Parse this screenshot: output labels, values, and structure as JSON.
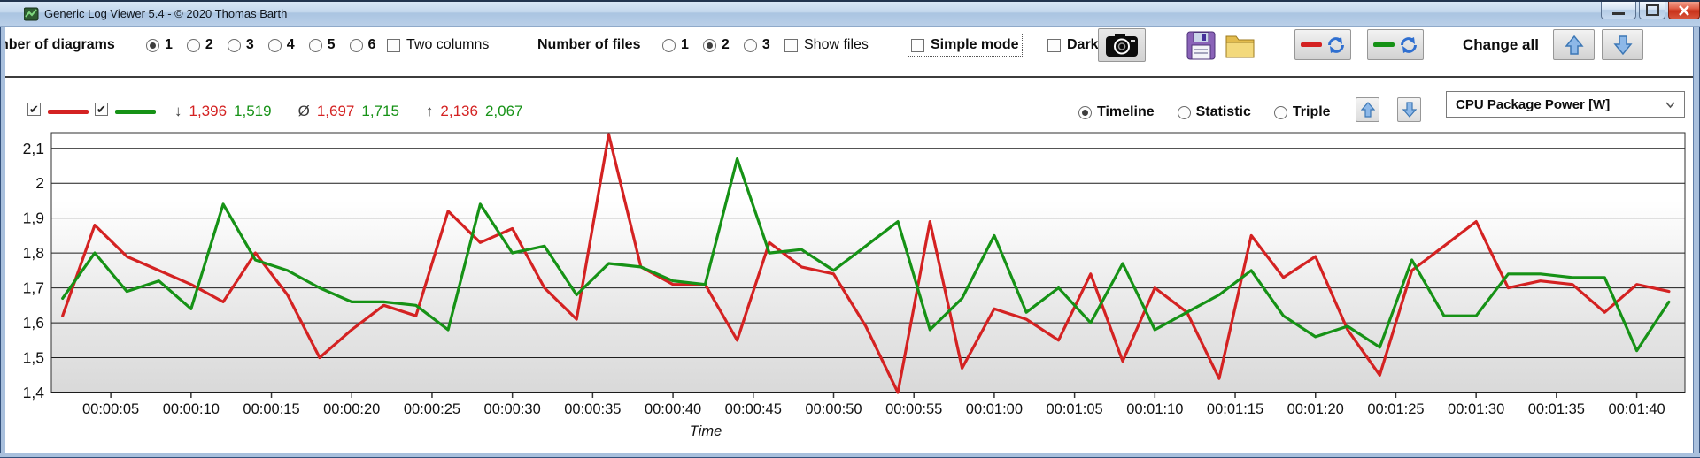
{
  "titlebar": {
    "title": "Generic Log Viewer 5.4 - © 2020 Thomas Barth"
  },
  "icons": {
    "check": "✔",
    "camera": "camera-icon",
    "save": "floppy-disk-icon",
    "open": "folder-icon",
    "refresh": "refresh-arrows-icon",
    "arrow_up": "blue-arrow-up-icon",
    "arrow_down": "blue-arrow-down-icon"
  },
  "toolbar": {
    "diagrams": {
      "label": "nber of diagrams",
      "options": [
        "1",
        "2",
        "3",
        "4",
        "5",
        "6"
      ],
      "selected": "1"
    },
    "two_columns": {
      "label": "Two columns",
      "checked": false
    },
    "files": {
      "label": "Number of files",
      "options": [
        "1",
        "2",
        "3"
      ],
      "selected": "2"
    },
    "show_files": {
      "label": "Show files",
      "checked": false
    },
    "simple_mode": {
      "label": "Simple mode",
      "checked": false,
      "focused": true
    },
    "dark": {
      "label": "Dark",
      "checked": false
    },
    "change_all_label": "Change all"
  },
  "legend": {
    "series_toggles": [
      {
        "name": "file-1",
        "checked": true,
        "color": "#d42222"
      },
      {
        "name": "file-2",
        "checked": true,
        "color": "#169216"
      }
    ],
    "stats": [
      {
        "symbol": "↓",
        "name": "minimum",
        "red": "1,396",
        "green": "1,519"
      },
      {
        "symbol": "Ø",
        "name": "average",
        "red": "1,697",
        "green": "1,715"
      },
      {
        "symbol": "↑",
        "name": "maximum",
        "red": "2,136",
        "green": "2,067"
      }
    ],
    "view_modes": {
      "options": [
        "Timeline",
        "Statistic",
        "Triple"
      ],
      "selected": "Timeline"
    },
    "channel_dropdown": {
      "value": "CPU Package Power [W]"
    }
  },
  "chart_data": {
    "type": "line",
    "title": "",
    "xlabel": "Time",
    "ylabel": "",
    "grid": true,
    "ylim": [
      1.4,
      2.145
    ],
    "xlim_seconds": [
      1.3,
      103
    ],
    "y_tick_values": [
      2.1,
      2.0,
      1.9,
      1.8,
      1.7,
      1.6,
      1.5,
      1.4
    ],
    "y_tick_labels": [
      "2,1",
      "2",
      "1,9",
      "1,8",
      "1,7",
      "1,6",
      "1,5",
      "1,4"
    ],
    "y_grid_values": [
      2.1,
      2.0,
      1.9,
      1.8,
      1.7,
      1.6,
      1.5
    ],
    "x_tick_seconds": [
      5,
      10,
      15,
      20,
      25,
      30,
      35,
      40,
      45,
      50,
      55,
      60,
      65,
      70,
      75,
      80,
      85,
      90,
      95,
      100
    ],
    "x_tick_labels": [
      "00:00:05",
      "00:00:10",
      "00:00:15",
      "00:00:20",
      "00:00:25",
      "00:00:30",
      "00:00:35",
      "00:00:40",
      "00:00:45",
      "00:00:50",
      "00:00:55",
      "00:01:00",
      "00:01:05",
      "00:01:10",
      "00:01:15",
      "00:01:20",
      "00:01:25",
      "00:01:30",
      "00:01:35",
      "00:01:40"
    ],
    "x_seconds": [
      2,
      4,
      6,
      8,
      10,
      12,
      14,
      16,
      18,
      20,
      22,
      24,
      26,
      28,
      30,
      32,
      34,
      36,
      38,
      40,
      42,
      44,
      46,
      48,
      50,
      52,
      54,
      56,
      58,
      60,
      62,
      64,
      66,
      68,
      70,
      72,
      74,
      76,
      78,
      80,
      82,
      84,
      86,
      88,
      90,
      92,
      94,
      96,
      98,
      100,
      102
    ],
    "series": [
      {
        "name": "file-1-red",
        "color": "#d42222",
        "values": [
          1.62,
          1.88,
          1.79,
          1.75,
          1.71,
          1.66,
          1.8,
          1.68,
          1.5,
          1.58,
          1.65,
          1.62,
          1.92,
          1.83,
          1.87,
          1.7,
          1.61,
          2.14,
          1.76,
          1.71,
          1.71,
          1.55,
          1.83,
          1.76,
          1.74,
          1.59,
          1.4,
          1.89,
          1.47,
          1.64,
          1.61,
          1.55,
          1.74,
          1.49,
          1.7,
          1.63,
          1.44,
          1.85,
          1.73,
          1.79,
          1.58,
          1.45,
          1.75,
          1.82,
          1.89,
          1.7,
          1.72,
          1.71,
          1.63,
          1.71,
          1.69
        ]
      },
      {
        "name": "file-2-green",
        "color": "#169216",
        "values": [
          1.67,
          1.8,
          1.69,
          1.72,
          1.64,
          1.94,
          1.78,
          1.75,
          1.7,
          1.66,
          1.66,
          1.65,
          1.58,
          1.94,
          1.8,
          1.82,
          1.68,
          1.77,
          1.76,
          1.72,
          1.71,
          2.07,
          1.8,
          1.81,
          1.75,
          1.82,
          1.89,
          1.58,
          1.67,
          1.85,
          1.63,
          1.7,
          1.6,
          1.77,
          1.58,
          1.63,
          1.68,
          1.75,
          1.62,
          1.56,
          1.59,
          1.53,
          1.78,
          1.62,
          1.62,
          1.74,
          1.74,
          1.73,
          1.73,
          1.52,
          1.66
        ]
      }
    ]
  }
}
